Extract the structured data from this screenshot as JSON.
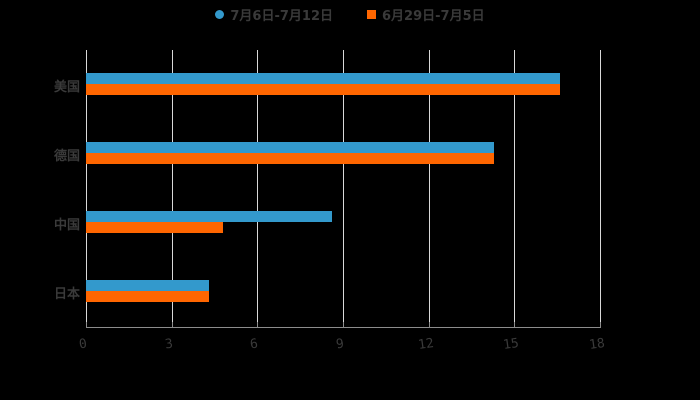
{
  "chart_data": {
    "type": "bar",
    "orientation": "horizontal",
    "title": "",
    "xlabel": "",
    "ylabel": "",
    "categories": [
      "美国",
      "德国",
      "中国",
      "日本"
    ],
    "series": [
      {
        "name": "7月6日-7月12日",
        "color": "#3399cc",
        "values": [
          16.6,
          14.3,
          8.6,
          4.3
        ]
      },
      {
        "name": "6月29日-7月5日",
        "color": "#ff6600",
        "values": [
          16.6,
          14.3,
          4.8,
          4.3
        ]
      }
    ],
    "xlim": [
      0,
      18
    ],
    "xticks": [
      "0",
      "3",
      "6",
      "9",
      "12",
      "15",
      "18"
    ],
    "grid": true,
    "legend_position": "top"
  },
  "legend": {
    "items": [
      {
        "label": "7月6日-7月12日",
        "color": "#3399cc"
      },
      {
        "label": "6月29日-7月5日",
        "color": "#ff6600"
      }
    ]
  }
}
